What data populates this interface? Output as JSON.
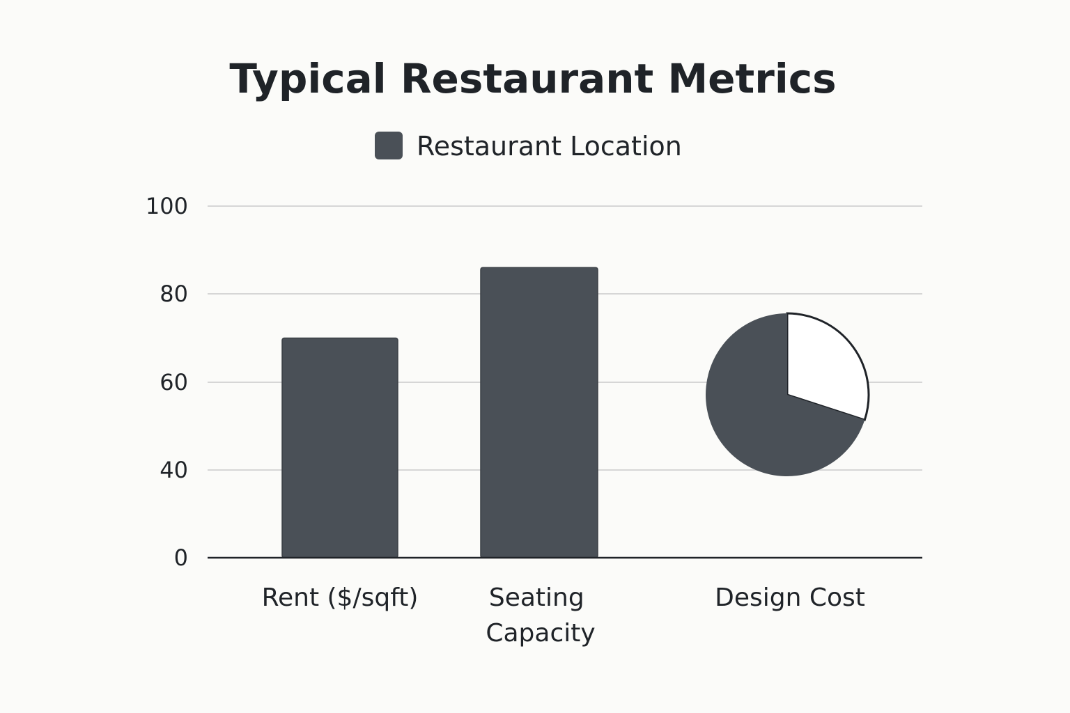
{
  "chart_data": {
    "type": "bar",
    "title": "Typical Restaurant Metrics",
    "legend": [
      "Restaurant Location"
    ],
    "categories": [
      "Rent ($/sqft)",
      "Seating Capacity",
      "Design Cost"
    ],
    "series": [
      {
        "name": "Restaurant Location",
        "values": [
          70,
          86,
          null
        ]
      }
    ],
    "pie": {
      "category": "Design Cost",
      "slices": [
        {
          "label": "dark",
          "fraction": 0.7
        },
        {
          "label": "light",
          "fraction": 0.3
        }
      ]
    },
    "yticks": [
      0,
      40,
      60,
      80,
      100
    ],
    "ylim": [
      0,
      100
    ],
    "grid": true,
    "legend_position": "top-center",
    "colors": {
      "bar": "#4a5057",
      "pie_dark": "#4a5057",
      "pie_light": "#ffffff",
      "grid": "#d6d6d6",
      "axis": "#1f2328"
    }
  }
}
